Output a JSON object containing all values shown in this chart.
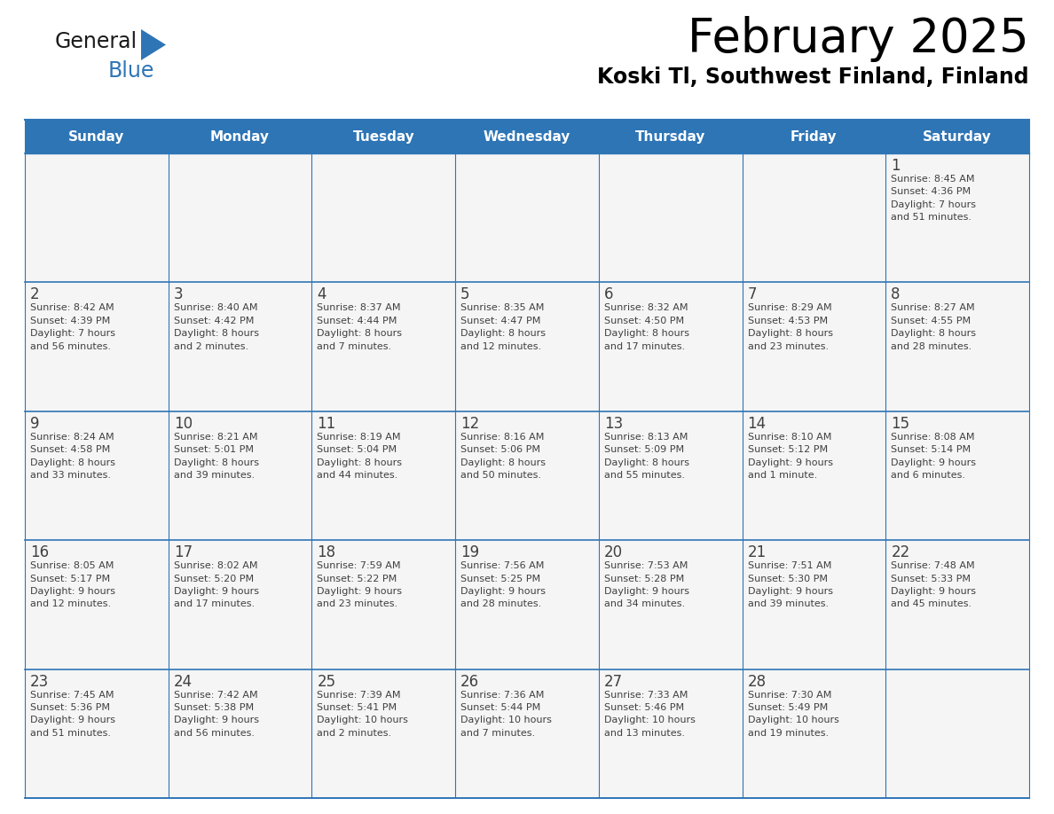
{
  "title": "February 2025",
  "subtitle": "Koski Tl, Southwest Finland, Finland",
  "days_of_week": [
    "Sunday",
    "Monday",
    "Tuesday",
    "Wednesday",
    "Thursday",
    "Friday",
    "Saturday"
  ],
  "header_bg": "#2e75b6",
  "header_text_color": "#ffffff",
  "cell_bg_light": "#f5f5f5",
  "cell_bg_white": "#ffffff",
  "line_color": "#2e75b6",
  "text_color": "#404040",
  "title_color": "#000000",
  "subtitle_color": "#000000",
  "weeks": [
    [
      {
        "day": null,
        "info": null
      },
      {
        "day": null,
        "info": null
      },
      {
        "day": null,
        "info": null
      },
      {
        "day": null,
        "info": null
      },
      {
        "day": null,
        "info": null
      },
      {
        "day": null,
        "info": null
      },
      {
        "day": 1,
        "info": "Sunrise: 8:45 AM\nSunset: 4:36 PM\nDaylight: 7 hours\nand 51 minutes."
      }
    ],
    [
      {
        "day": 2,
        "info": "Sunrise: 8:42 AM\nSunset: 4:39 PM\nDaylight: 7 hours\nand 56 minutes."
      },
      {
        "day": 3,
        "info": "Sunrise: 8:40 AM\nSunset: 4:42 PM\nDaylight: 8 hours\nand 2 minutes."
      },
      {
        "day": 4,
        "info": "Sunrise: 8:37 AM\nSunset: 4:44 PM\nDaylight: 8 hours\nand 7 minutes."
      },
      {
        "day": 5,
        "info": "Sunrise: 8:35 AM\nSunset: 4:47 PM\nDaylight: 8 hours\nand 12 minutes."
      },
      {
        "day": 6,
        "info": "Sunrise: 8:32 AM\nSunset: 4:50 PM\nDaylight: 8 hours\nand 17 minutes."
      },
      {
        "day": 7,
        "info": "Sunrise: 8:29 AM\nSunset: 4:53 PM\nDaylight: 8 hours\nand 23 minutes."
      },
      {
        "day": 8,
        "info": "Sunrise: 8:27 AM\nSunset: 4:55 PM\nDaylight: 8 hours\nand 28 minutes."
      }
    ],
    [
      {
        "day": 9,
        "info": "Sunrise: 8:24 AM\nSunset: 4:58 PM\nDaylight: 8 hours\nand 33 minutes."
      },
      {
        "day": 10,
        "info": "Sunrise: 8:21 AM\nSunset: 5:01 PM\nDaylight: 8 hours\nand 39 minutes."
      },
      {
        "day": 11,
        "info": "Sunrise: 8:19 AM\nSunset: 5:04 PM\nDaylight: 8 hours\nand 44 minutes."
      },
      {
        "day": 12,
        "info": "Sunrise: 8:16 AM\nSunset: 5:06 PM\nDaylight: 8 hours\nand 50 minutes."
      },
      {
        "day": 13,
        "info": "Sunrise: 8:13 AM\nSunset: 5:09 PM\nDaylight: 8 hours\nand 55 minutes."
      },
      {
        "day": 14,
        "info": "Sunrise: 8:10 AM\nSunset: 5:12 PM\nDaylight: 9 hours\nand 1 minute."
      },
      {
        "day": 15,
        "info": "Sunrise: 8:08 AM\nSunset: 5:14 PM\nDaylight: 9 hours\nand 6 minutes."
      }
    ],
    [
      {
        "day": 16,
        "info": "Sunrise: 8:05 AM\nSunset: 5:17 PM\nDaylight: 9 hours\nand 12 minutes."
      },
      {
        "day": 17,
        "info": "Sunrise: 8:02 AM\nSunset: 5:20 PM\nDaylight: 9 hours\nand 17 minutes."
      },
      {
        "day": 18,
        "info": "Sunrise: 7:59 AM\nSunset: 5:22 PM\nDaylight: 9 hours\nand 23 minutes."
      },
      {
        "day": 19,
        "info": "Sunrise: 7:56 AM\nSunset: 5:25 PM\nDaylight: 9 hours\nand 28 minutes."
      },
      {
        "day": 20,
        "info": "Sunrise: 7:53 AM\nSunset: 5:28 PM\nDaylight: 9 hours\nand 34 minutes."
      },
      {
        "day": 21,
        "info": "Sunrise: 7:51 AM\nSunset: 5:30 PM\nDaylight: 9 hours\nand 39 minutes."
      },
      {
        "day": 22,
        "info": "Sunrise: 7:48 AM\nSunset: 5:33 PM\nDaylight: 9 hours\nand 45 minutes."
      }
    ],
    [
      {
        "day": 23,
        "info": "Sunrise: 7:45 AM\nSunset: 5:36 PM\nDaylight: 9 hours\nand 51 minutes."
      },
      {
        "day": 24,
        "info": "Sunrise: 7:42 AM\nSunset: 5:38 PM\nDaylight: 9 hours\nand 56 minutes."
      },
      {
        "day": 25,
        "info": "Sunrise: 7:39 AM\nSunset: 5:41 PM\nDaylight: 10 hours\nand 2 minutes."
      },
      {
        "day": 26,
        "info": "Sunrise: 7:36 AM\nSunset: 5:44 PM\nDaylight: 10 hours\nand 7 minutes."
      },
      {
        "day": 27,
        "info": "Sunrise: 7:33 AM\nSunset: 5:46 PM\nDaylight: 10 hours\nand 13 minutes."
      },
      {
        "day": 28,
        "info": "Sunrise: 7:30 AM\nSunset: 5:49 PM\nDaylight: 10 hours\nand 19 minutes."
      },
      {
        "day": null,
        "info": null
      }
    ]
  ]
}
